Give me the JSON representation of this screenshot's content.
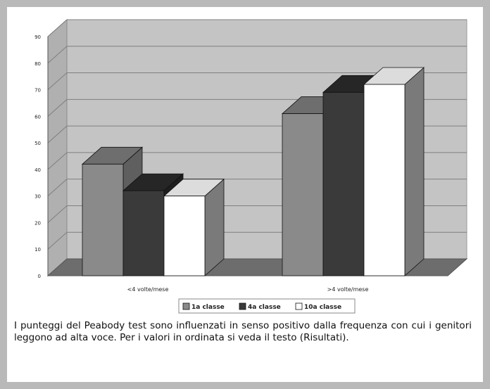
{
  "chart_data": {
    "type": "bar",
    "three_d": true,
    "categories": [
      "<4 volte/mese",
      ">4 volte/mese"
    ],
    "series": [
      {
        "name": "1a classe",
        "color": "#8a8a8a",
        "values": [
          42,
          61
        ]
      },
      {
        "name": "4a classe",
        "color": "#3a3a3a",
        "values": [
          32,
          69
        ]
      },
      {
        "name": "10a classe",
        "color": "#ffffff",
        "values": [
          30,
          72
        ]
      }
    ],
    "ylim": [
      0,
      90
    ],
    "yticks": [
      0,
      10,
      20,
      30,
      40,
      50,
      60,
      70,
      80,
      90
    ],
    "grid": true,
    "legend": "bottom",
    "legend_labels": [
      "1a classe",
      "4a classe",
      "10a classe"
    ],
    "xlabel": "",
    "ylabel": ""
  },
  "caption": "I punteggi del Peabody test sono influenzati in senso positivo dalla frequenza con cui i genitori leggono ad alta voce. Per i valori in ordinata si veda il testo (Risultati)."
}
